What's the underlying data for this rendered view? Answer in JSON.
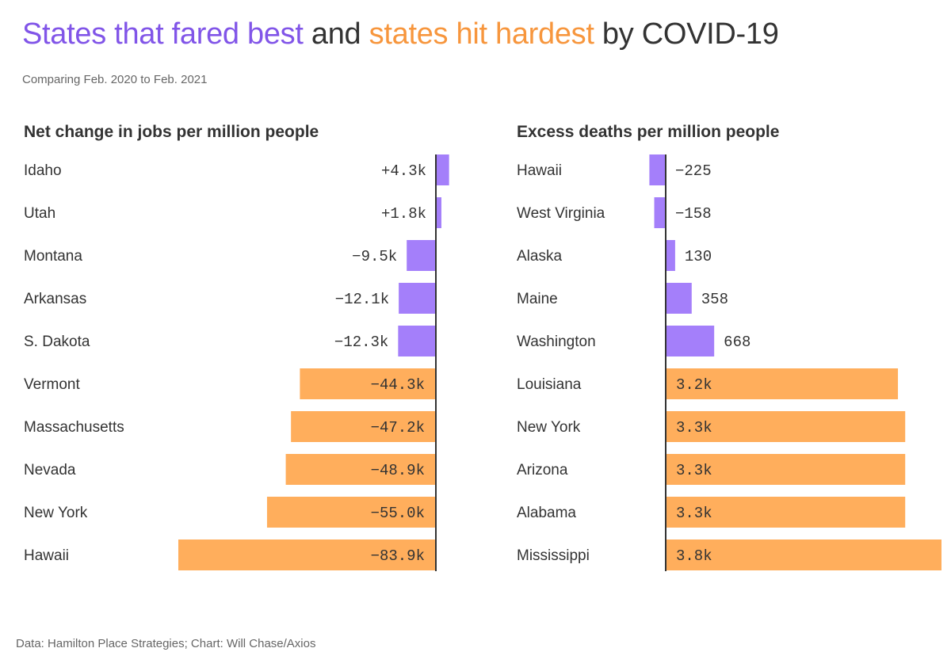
{
  "title": {
    "part1": "States that fared best",
    "part2": " and ",
    "part3": "states hit hardest",
    "part4": " by COVID-19"
  },
  "subtitle": "Comparing Feb. 2020 to Feb. 2021",
  "footer": "Data: Hamilton Place Strategies; Chart: Will Chase/Axios",
  "colors": {
    "best": "#a47ffa",
    "worst": "#ffae5c",
    "axis": "#333333",
    "title_best": "#8155e8",
    "title_worst": "#f7963d"
  },
  "chart_data": [
    {
      "type": "bar",
      "orientation": "horizontal",
      "title": "Net change in jobs per million people",
      "categories": [
        "Idaho",
        "Utah",
        "Montana",
        "Arkansas",
        "S. Dakota",
        "Vermont",
        "Massachusetts",
        "Nevada",
        "New York",
        "Hawaii"
      ],
      "values": [
        4300,
        1800,
        -9500,
        -12100,
        -12300,
        -44300,
        -47200,
        -48900,
        -55000,
        -83900
      ],
      "labels": [
        "+4.3k",
        "+1.8k",
        "−9.5k",
        "−12.1k",
        "−12.3k",
        "−44.3k",
        "−47.2k",
        "−48.9k",
        "−55.0k",
        "−83.9k"
      ],
      "groups": [
        "best",
        "best",
        "best",
        "best",
        "best",
        "worst",
        "worst",
        "worst",
        "worst",
        "worst"
      ]
    },
    {
      "type": "bar",
      "orientation": "horizontal",
      "title": "Excess deaths per million people",
      "categories": [
        "Hawaii",
        "West Virginia",
        "Alaska",
        "Maine",
        "Washington",
        "Louisiana",
        "New York",
        "Arizona",
        "Alabama",
        "Mississippi"
      ],
      "values": [
        -225,
        -158,
        130,
        358,
        668,
        3200,
        3300,
        3300,
        3300,
        3800
      ],
      "labels": [
        "−225",
        "−158",
        "130",
        "358",
        "668",
        "3.2k",
        "3.3k",
        "3.3k",
        "3.3k",
        "3.8k"
      ],
      "groups": [
        "best",
        "best",
        "best",
        "best",
        "best",
        "worst",
        "worst",
        "worst",
        "worst",
        "worst"
      ]
    }
  ]
}
